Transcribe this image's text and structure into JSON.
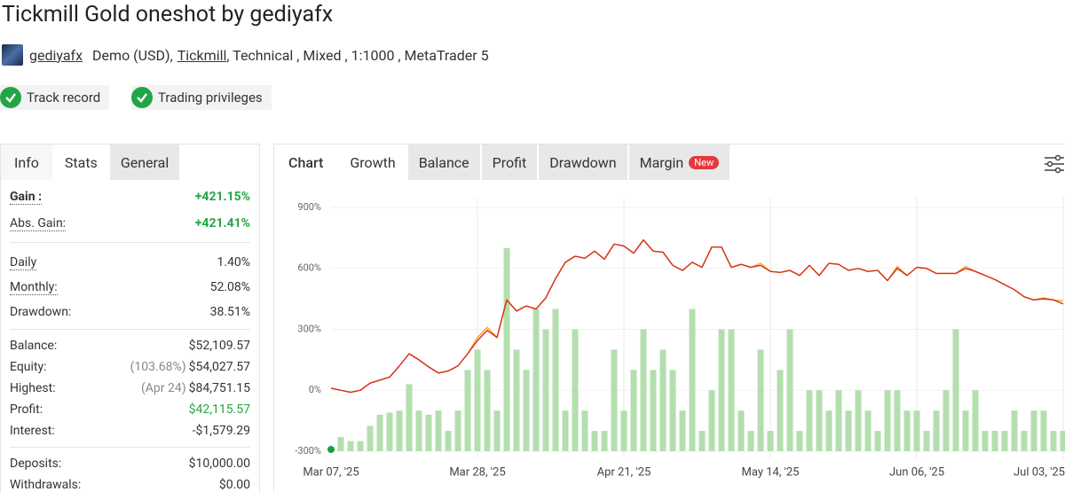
{
  "header": {
    "title": "Tickmill Gold oneshot by gediyafx",
    "author": "gediyafx",
    "details": [
      "Demo (USD),",
      "Tickmill",
      ", Technical , Mixed , 1:1000 , MetaTrader 5"
    ]
  },
  "badges": [
    "Track record",
    "Trading privileges"
  ],
  "left_tabs": [
    "Info",
    "Stats",
    "General"
  ],
  "stats": [
    [
      {
        "label": "Gain :",
        "value": "+421.15%",
        "color": "#21a645",
        "dotted": true,
        "bold": true
      },
      {
        "label": "Abs. Gain:",
        "value": "+421.41%",
        "color": "#21a645",
        "dotted": true
      }
    ],
    [
      {
        "label": "Daily",
        "value": "1.40%",
        "dotted": true
      },
      {
        "label": "Monthly:",
        "value": "52.08%",
        "dotted": true
      },
      {
        "label": "Drawdown:",
        "value": "38.51%"
      }
    ],
    [
      {
        "label": "Balance:",
        "value": "$52,109.57"
      },
      {
        "label": "Equity:",
        "note": "(103.68%)",
        "value": "$54,027.57"
      },
      {
        "label": "Highest:",
        "note": "(Apr 24)",
        "value": "$84,751.15"
      },
      {
        "label": "Profit:",
        "value": "$42,115.57",
        "color": "#21a645"
      },
      {
        "label": "Interest:",
        "value": "-$1,579.29"
      }
    ],
    [
      {
        "label": "Deposits:",
        "value": "$10,000.00"
      },
      {
        "label": "Withdrawals:",
        "value": "$0.00"
      }
    ]
  ],
  "chart_tabs": {
    "heading": "Chart",
    "tabs": [
      "Growth",
      "Balance",
      "Profit",
      "Drawdown",
      "Margin"
    ],
    "badge": "New"
  },
  "chart_data": {
    "type": "bar",
    "categories": [
      "Mar 07, '25",
      null,
      null,
      null,
      null,
      null,
      null,
      null,
      null,
      null,
      null,
      null,
      null,
      null,
      null,
      "Mar 28, '25",
      null,
      null,
      null,
      null,
      null,
      null,
      null,
      null,
      null,
      null,
      null,
      null,
      null,
      null,
      "Apr 21, '25",
      null,
      null,
      null,
      null,
      null,
      null,
      null,
      null,
      null,
      null,
      null,
      null,
      null,
      null,
      "May 14, '25",
      null,
      null,
      null,
      null,
      null,
      null,
      null,
      null,
      null,
      null,
      null,
      null,
      null,
      null,
      "Jun 06, '25",
      null,
      null,
      null,
      null,
      null,
      null,
      null,
      null,
      null,
      null,
      null,
      null,
      null,
      null,
      "Jul 03, '25"
    ],
    "ylim": [
      -300,
      900
    ],
    "yticks": [
      {
        "value": -300,
        "label": "-300%"
      },
      {
        "value": 0,
        "label": "0%"
      },
      {
        "value": 300,
        "label": "300%"
      },
      {
        "value": 600,
        "label": "600%"
      },
      {
        "value": 900,
        "label": "900%"
      }
    ],
    "series": [
      {
        "type": "bar",
        "color": "#b3dfae",
        "values": [
          null,
          -230,
          -250,
          -250,
          -175,
          -120,
          -110,
          -100,
          30,
          -100,
          -120,
          -100,
          -200,
          -100,
          100,
          200,
          100,
          -100,
          700,
          200,
          100,
          400,
          300,
          400,
          -100,
          300,
          -100,
          -200,
          -200,
          200,
          -100,
          100,
          300,
          100,
          200,
          100,
          -100,
          400,
          -200,
          0,
          300,
          300,
          -100,
          -200,
          200,
          -200,
          100,
          300,
          -200,
          0,
          0,
          -100,
          0,
          -100,
          0,
          -100,
          -200,
          0,
          0,
          -100,
          -100,
          -200,
          -100,
          0,
          300,
          -100,
          0,
          -200,
          -200,
          -200,
          -100,
          -200,
          -100,
          -100,
          -200,
          -200
        ]
      },
      {
        "type": "line",
        "color": "#f5a623",
        "values": [
          10,
          0,
          -10,
          0,
          35,
          50,
          65,
          120,
          180,
          150,
          115,
          85,
          95,
          120,
          180,
          260,
          310,
          260,
          445,
          390,
          415,
          400,
          455,
          550,
          630,
          660,
          650,
          685,
          645,
          720,
          710,
          675,
          740,
          685,
          680,
          615,
          590,
          630,
          605,
          705,
          705,
          605,
          620,
          605,
          625,
          585,
          580,
          590,
          565,
          615,
          565,
          625,
          620,
          590,
          600,
          585,
          590,
          540,
          610,
          565,
          605,
          600,
          575,
          575,
          575,
          610,
          585,
          565,
          545,
          520,
          495,
          460,
          445,
          455,
          445,
          440
        ]
      },
      {
        "type": "line",
        "color": "#d42e1c",
        "values": [
          10,
          0,
          -10,
          0,
          35,
          50,
          65,
          120,
          180,
          150,
          115,
          85,
          95,
          120,
          180,
          245,
          295,
          260,
          445,
          390,
          415,
          400,
          455,
          550,
          630,
          660,
          650,
          685,
          645,
          720,
          710,
          675,
          740,
          685,
          680,
          615,
          590,
          630,
          605,
          705,
          705,
          605,
          620,
          605,
          615,
          585,
          580,
          590,
          565,
          615,
          565,
          625,
          620,
          590,
          600,
          585,
          590,
          540,
          600,
          565,
          605,
          600,
          575,
          575,
          575,
          600,
          585,
          565,
          545,
          520,
          495,
          460,
          445,
          450,
          445,
          425
        ]
      }
    ]
  }
}
